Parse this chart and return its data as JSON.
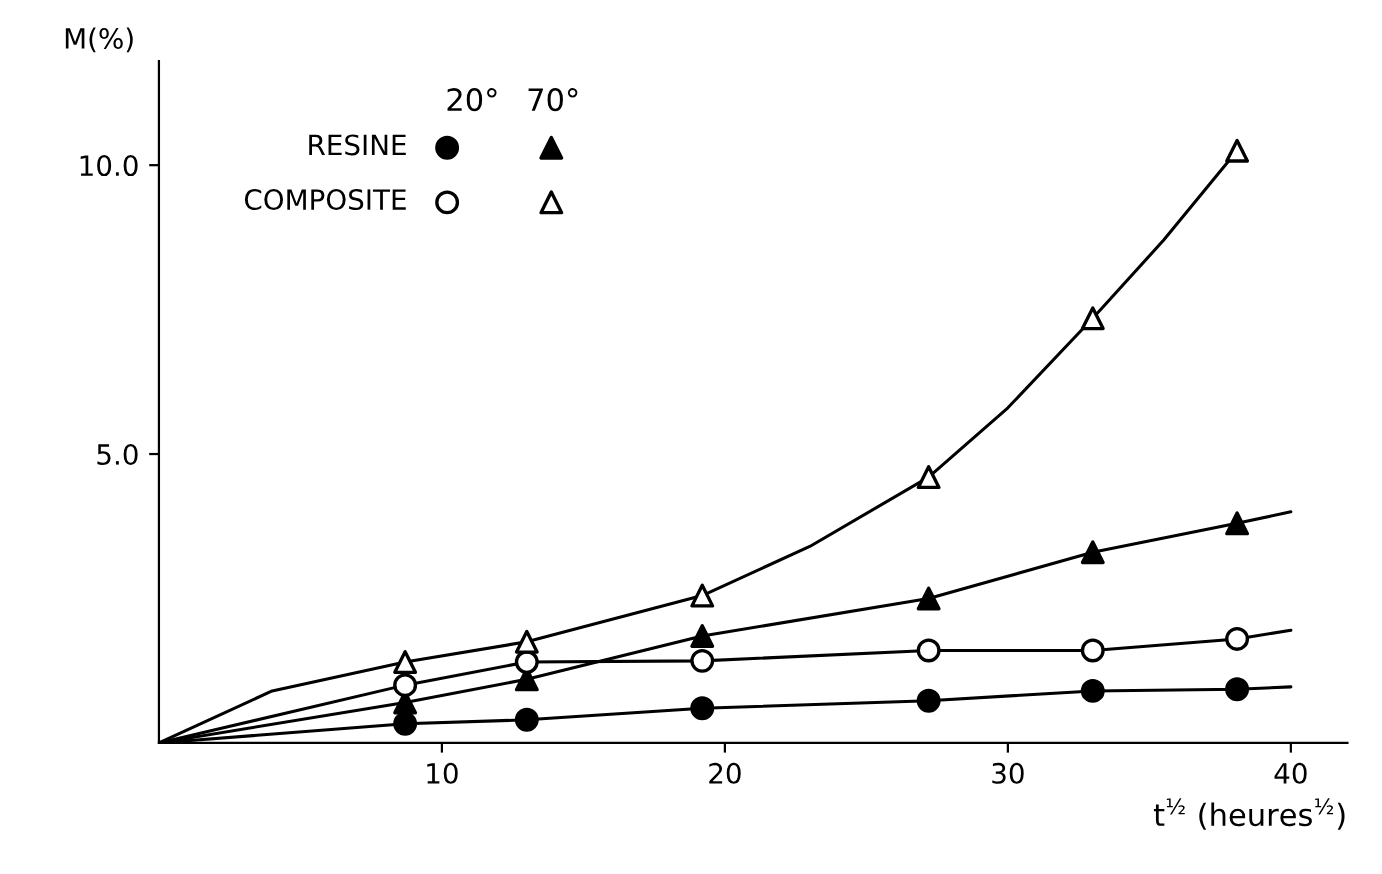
{
  "chart_data": {
    "type": "scatter",
    "xlabel": "t$^{½}$ (heures$^{½}$)",
    "ylabel": "M(%)",
    "xlim": [
      0,
      42
    ],
    "ylim": [
      0,
      11.8
    ],
    "xticks": [
      10,
      20,
      30,
      40
    ],
    "yticks": [
      {
        "value": 5,
        "label": "5.0"
      },
      {
        "value": 10,
        "label": "10.0"
      }
    ],
    "grid": false,
    "legend": "top left",
    "annotations": [
      "20°",
      "70°"
    ],
    "series": [
      {
        "name": "RESINE",
        "marker": "circle",
        "color": "#000000",
        "x": [
          8.7,
          13,
          19.2,
          27.2,
          33,
          38.1
        ],
        "values": [
          0.33,
          0.4,
          0.6,
          0.73,
          0.9,
          0.93
        ]
      },
      {
        "marker": "triangle",
        "color": "#000000",
        "x": [
          8.7,
          13,
          19.2,
          27.2,
          33,
          38.1
        ],
        "values": [
          0.7,
          1.1,
          1.85,
          2.5,
          3.3,
          3.8
        ]
      },
      {
        "name": "COMPOSITE",
        "marker": "circle",
        "color": "#ffffff",
        "x": [
          8.7,
          13,
          19.2,
          27.2,
          33,
          38.1
        ],
        "values": [
          1.0,
          1.4,
          1.42,
          1.6,
          1.6,
          1.8
        ]
      },
      {
        "marker": "triangle",
        "color": "#ffffff",
        "x": [
          8.7,
          13,
          19.2,
          27.2,
          33,
          38.1
        ],
        "values": [
          1.4,
          1.75,
          2.55,
          4.6,
          7.35,
          10.25
        ]
      },
      {
        "type": "line",
        "marker": "none",
        "color": "#000000",
        "x": [
          0,
          8.7,
          13,
          19.2,
          27.2,
          33,
          38.1,
          40
        ],
        "values": [
          0,
          0.33,
          0.4,
          0.6,
          0.73,
          0.9,
          0.93,
          0.97
        ]
      },
      {
        "type": "line",
        "marker": "none",
        "color": "#000000",
        "x": [
          0,
          8.7,
          13,
          19.2,
          27.2,
          33,
          38.1,
          40
        ],
        "values": [
          0,
          0.7,
          1.1,
          1.85,
          2.5,
          3.3,
          3.8,
          4.0
        ]
      },
      {
        "type": "line",
        "marker": "none",
        "color": "#000000",
        "x": [
          0,
          8.7,
          13,
          19.2,
          27.2,
          33,
          38.1,
          40
        ],
        "values": [
          0,
          1.0,
          1.4,
          1.42,
          1.6,
          1.6,
          1.8,
          1.95
        ]
      },
      {
        "type": "line",
        "marker": "none",
        "color": "#000000",
        "x": [
          0,
          4,
          8.7,
          13,
          19.2,
          23,
          27.2,
          30,
          33,
          35.5,
          38.1
        ],
        "values": [
          0,
          0.9,
          1.4,
          1.75,
          2.55,
          3.4,
          4.6,
          5.8,
          7.35,
          8.7,
          10.25
        ]
      }
    ]
  }
}
